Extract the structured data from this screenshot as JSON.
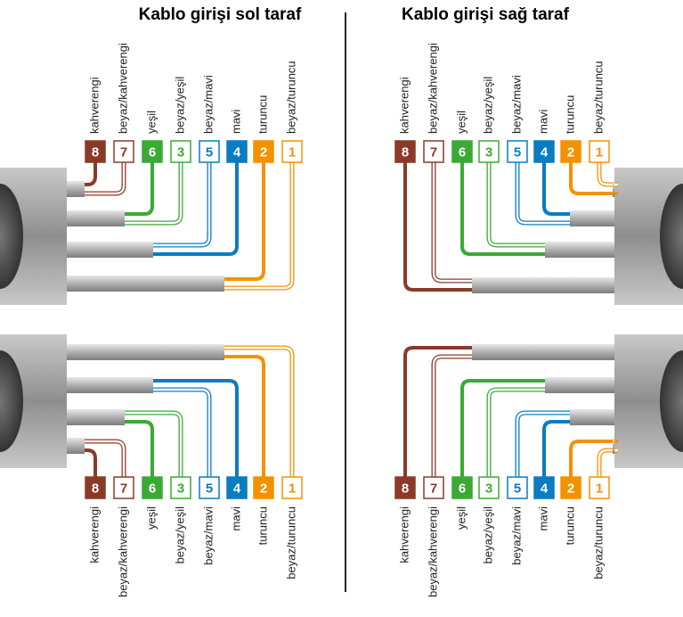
{
  "panels": [
    {
      "title": "Kablo girişi sol taraf"
    },
    {
      "title": "Kablo girişi sağ taraf"
    }
  ],
  "wires": [
    {
      "number": 8,
      "label": "kahverengi",
      "color": "#8b3a28",
      "striped": false
    },
    {
      "number": 7,
      "label": "beyaz/kahverengi",
      "color": "#8b3a28",
      "striped": true
    },
    {
      "number": 6,
      "label": "yeşil",
      "color": "#3aaa35",
      "striped": false
    },
    {
      "number": 3,
      "label": "beyaz/yeşil",
      "color": "#3aaa35",
      "striped": true
    },
    {
      "number": 5,
      "label": "beyaz/mavi",
      "color": "#0a7cc1",
      "striped": true
    },
    {
      "number": 4,
      "label": "mavi",
      "color": "#0a7cc1",
      "striped": false
    },
    {
      "number": 2,
      "label": "turuncu",
      "color": "#f39200",
      "striped": false
    },
    {
      "number": 1,
      "label": "beyaz/turuncu",
      "color": "#f39200",
      "striped": true
    }
  ]
}
